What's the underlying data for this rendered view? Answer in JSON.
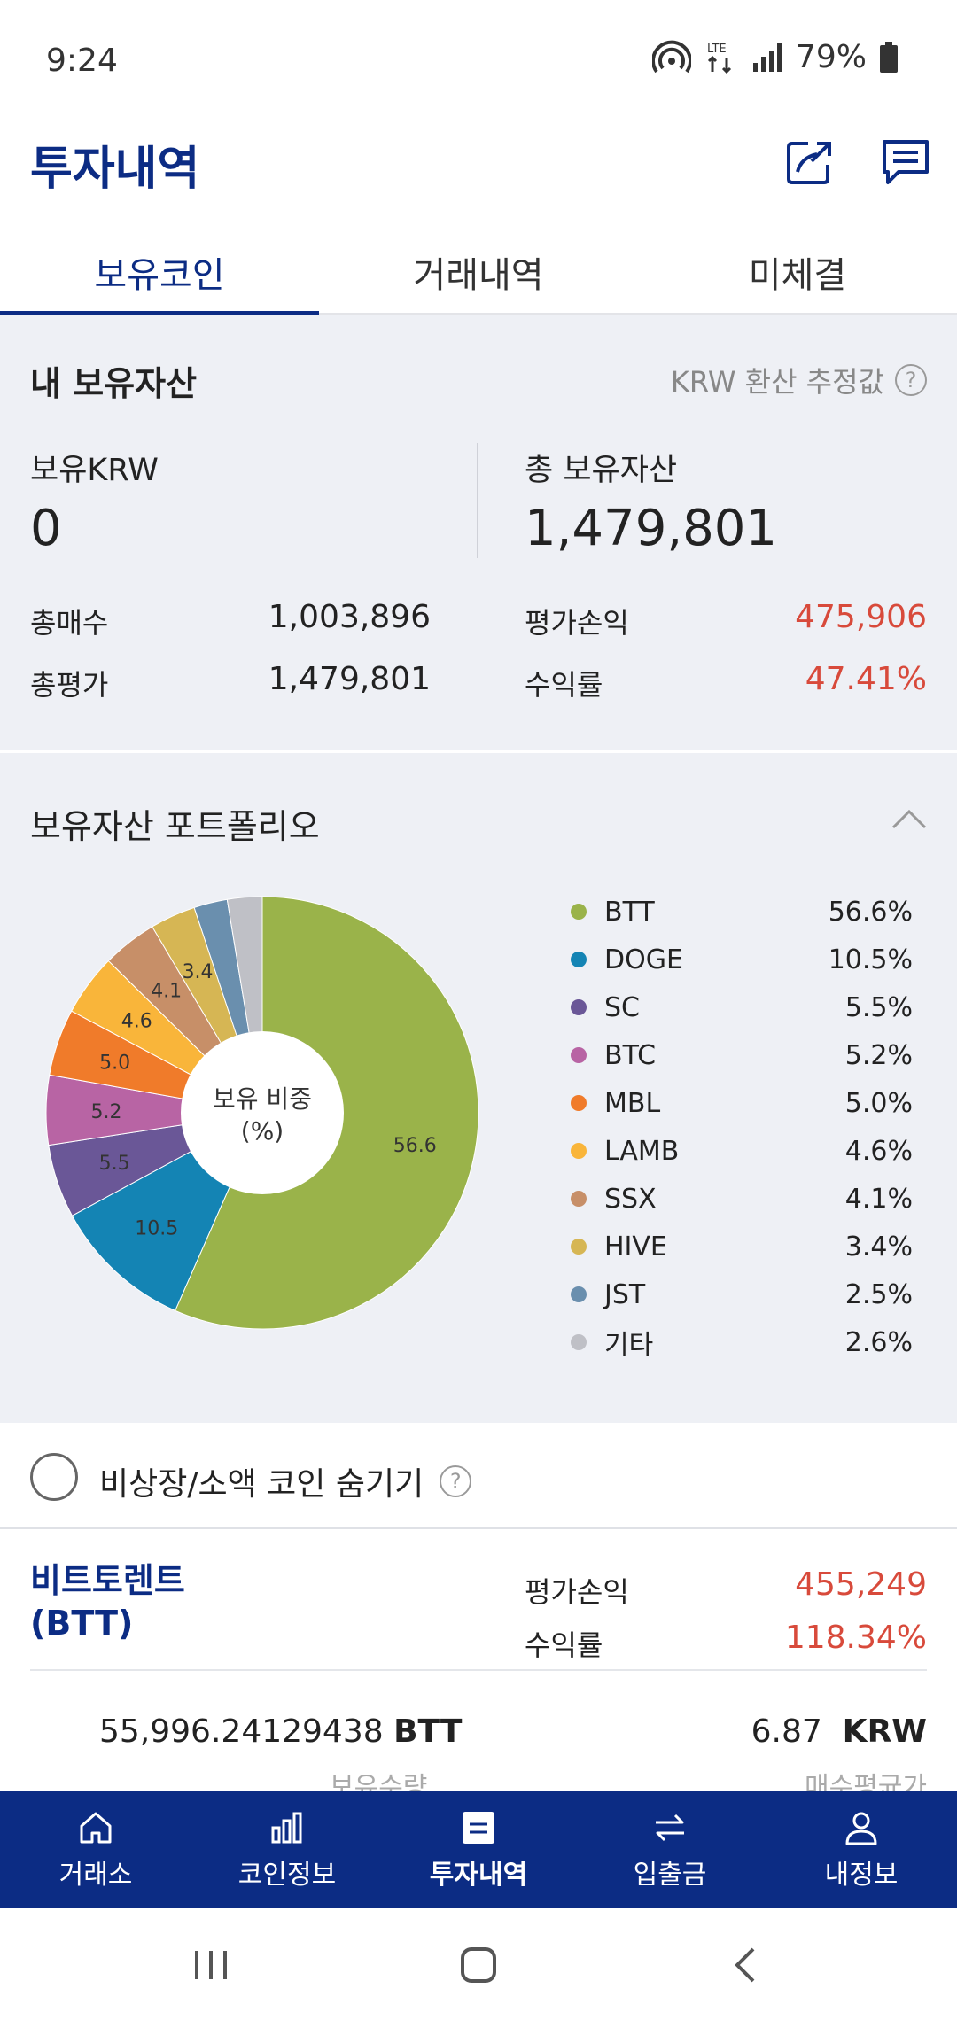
{
  "status": {
    "time": "9:24",
    "battery": "79%"
  },
  "header": {
    "title": "투자내역"
  },
  "tabs": [
    {
      "label": "보유코인",
      "active": true
    },
    {
      "label": "거래내역",
      "active": false
    },
    {
      "label": "미체결",
      "active": false
    }
  ],
  "assets": {
    "title": "내 보유자산",
    "note": "KRW 환산 추정값",
    "krw_label": "보유KRW",
    "krw_value": "0",
    "total_label": "총 보유자산",
    "total_value": "1,479,801",
    "rows": {
      "buy_label": "총매수",
      "buy_value": "1,003,896",
      "eval_label": "총평가",
      "eval_value": "1,479,801",
      "pl_label": "평가손익",
      "pl_value": "475,906",
      "rate_label": "수익률",
      "rate_value": "47.41%"
    }
  },
  "portfolio": {
    "title": "보유자산 포트폴리오",
    "center_line1": "보유 비중",
    "center_line2": "(%)"
  },
  "chart_data": {
    "type": "pie",
    "categories": [
      "BTT",
      "DOGE",
      "SC",
      "BTC",
      "MBL",
      "LAMB",
      "SSX",
      "HIVE",
      "JST",
      "기타"
    ],
    "values": [
      56.6,
      10.5,
      5.5,
      5.2,
      5.0,
      4.6,
      4.1,
      3.4,
      2.5,
      2.6
    ],
    "value_labels": [
      "56.6%",
      "10.5%",
      "5.5%",
      "5.2%",
      "5.0%",
      "4.6%",
      "4.1%",
      "3.4%",
      "2.5%",
      "2.6%"
    ],
    "slice_labels": [
      "56.6",
      "10.5",
      "5.5",
      "5.2",
      "5.0",
      "4.6",
      "4.1",
      "3.4",
      "",
      ""
    ],
    "colors": [
      "#9ab34a",
      "#1484b4",
      "#6a5797",
      "#b864a4",
      "#f07b2a",
      "#f9b53a",
      "#c78f68",
      "#d6b654",
      "#6a8fae",
      "#bfc0c6"
    ],
    "legend_position": "right"
  },
  "hide_toggle": {
    "label": "비상장/소액 코인 숨기기"
  },
  "coin": {
    "name_line1": "비트토렌트",
    "name_line2": "(BTT)",
    "pl_label": "평가손익",
    "pl_value": "455,249",
    "rate_label": "수익률",
    "rate_value": "118.34%",
    "qty_value": "55,996.24129438",
    "qty_unit": "BTT",
    "qty_label": "보유수량",
    "avg_value": "6.87",
    "avg_unit": "KRW",
    "avg_label": "매수평균가"
  },
  "bottom_nav": [
    {
      "label": "거래소",
      "icon": "home-icon"
    },
    {
      "label": "코인정보",
      "icon": "bar-chart-icon"
    },
    {
      "label": "투자내역",
      "icon": "list-icon",
      "active": true
    },
    {
      "label": "입출금",
      "icon": "transfer-icon"
    },
    {
      "label": "내정보",
      "icon": "user-icon"
    }
  ]
}
